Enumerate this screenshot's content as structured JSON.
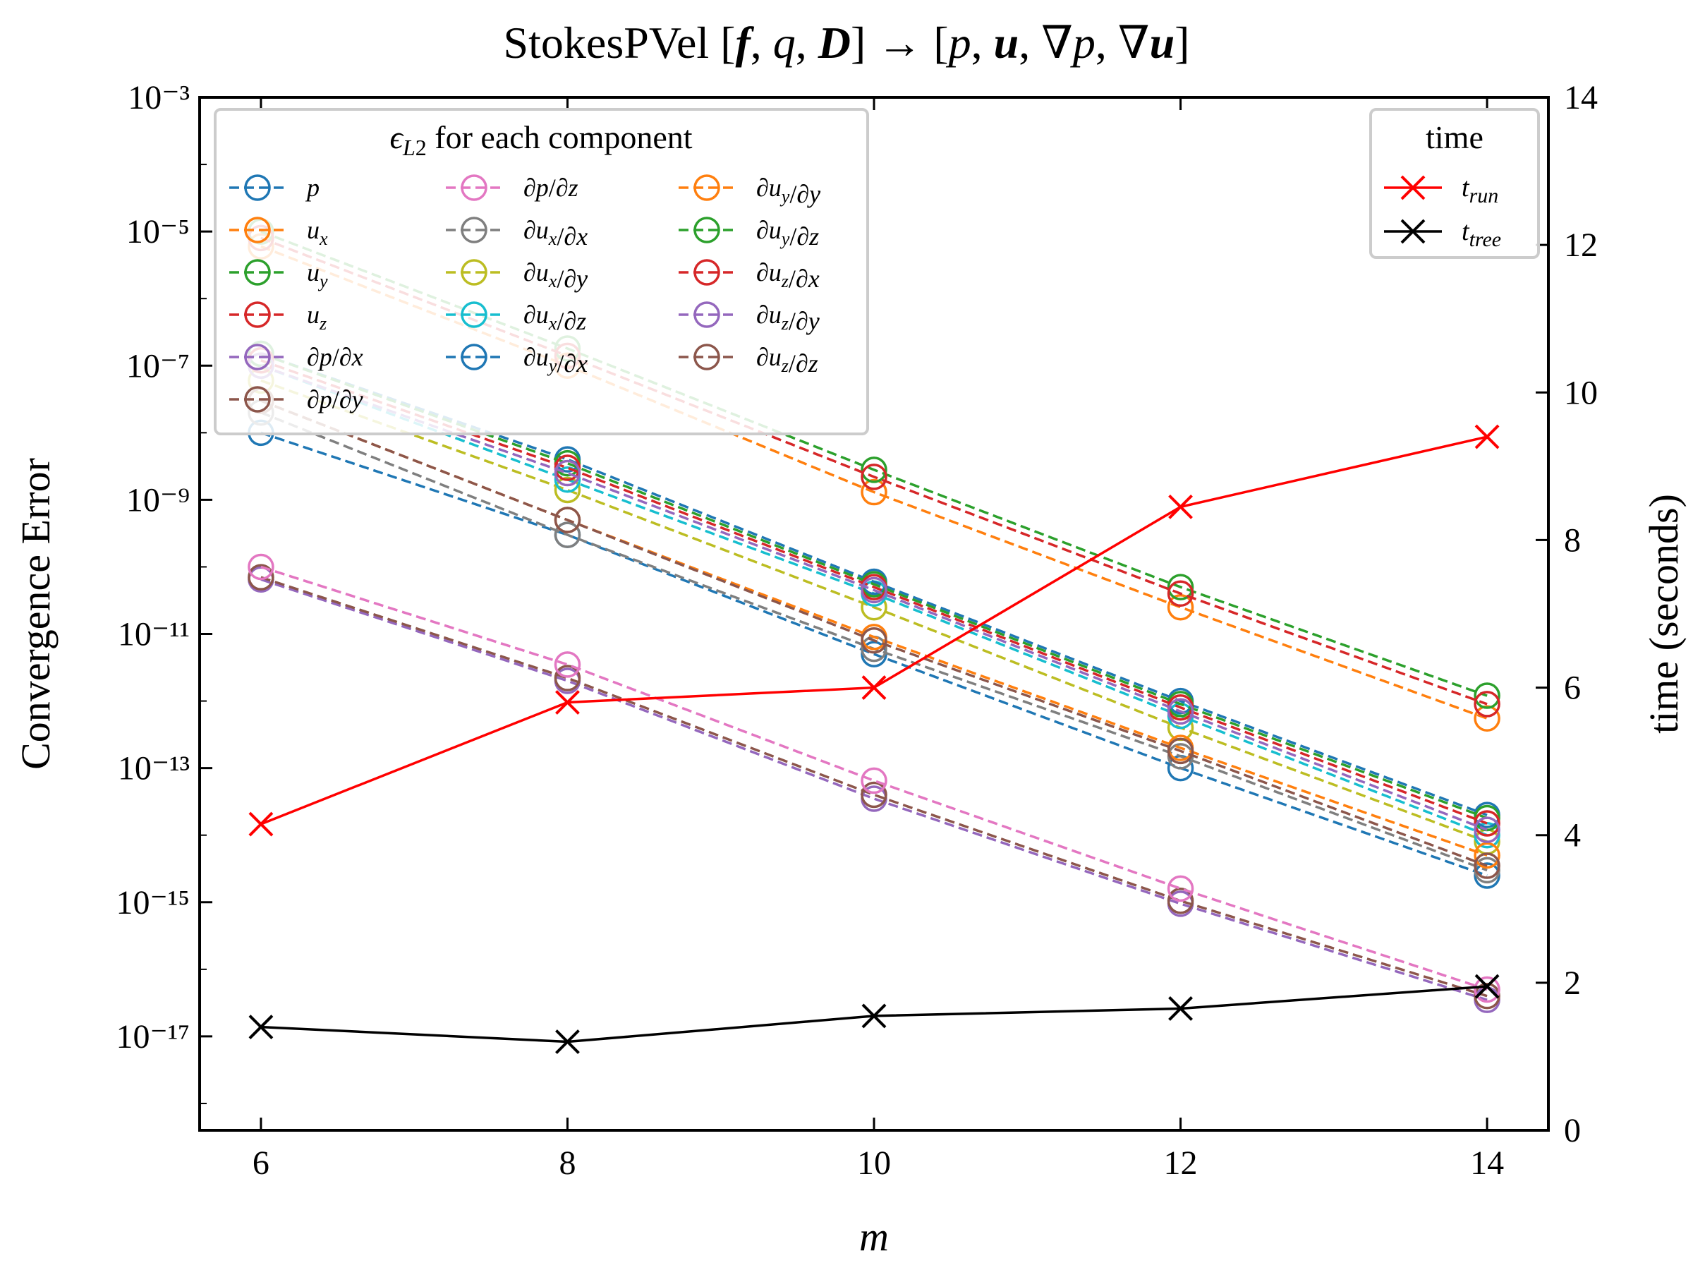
{
  "chart_data": {
    "type": "line",
    "title": "StokesPVel [f, q, D] → [p, u, ∇p, ∇u]",
    "xlabel": "m",
    "ylabel_left": "Convergence Error",
    "ylabel_right": "time (seconds)",
    "x": [
      6,
      8,
      10,
      12,
      14
    ],
    "xticks": [
      "6",
      "8",
      "10",
      "12",
      "14"
    ],
    "xlim": [
      5.6,
      14.4
    ],
    "left_axis": {
      "scale": "log",
      "ylim_exp": [
        -18.4,
        -3
      ],
      "tick_exps": [
        -3,
        -5,
        -7,
        -9,
        -11,
        -13,
        -15,
        -17
      ]
    },
    "right_axis": {
      "scale": "linear",
      "ylim": [
        0,
        14
      ],
      "ticks": [
        "0",
        "2",
        "4",
        "6",
        "8",
        "10",
        "12",
        "14"
      ]
    },
    "error_legend_title": "ε_L2 for each component",
    "time_legend_title": "time",
    "error_series": [
      {
        "name": "p",
        "color": "#1f77b4",
        "values": [
          1e-08,
          3e-10,
          5e-12,
          1e-13,
          2.5e-15
        ]
      },
      {
        "name": "u_x",
        "color": "#ff7f0e",
        "values": [
          6e-06,
          1e-07,
          1.3e-09,
          2.5e-11,
          5.5e-13
        ]
      },
      {
        "name": "u_y",
        "color": "#2ca02c",
        "values": [
          1e-05,
          1.8e-07,
          2.8e-09,
          5e-11,
          1.2e-12
        ]
      },
      {
        "name": "u_z",
        "color": "#d62728",
        "values": [
          8e-06,
          1.4e-07,
          2.2e-09,
          4e-11,
          9e-13
        ]
      },
      {
        "name": "∂p/∂x",
        "color": "#9467bd",
        "values": [
          6.5e-11,
          2e-12,
          3.5e-14,
          9.5e-16,
          3.5e-17
        ]
      },
      {
        "name": "∂p/∂y",
        "color": "#8c564b",
        "values": [
          7e-11,
          2.2e-12,
          4e-14,
          1.05e-15,
          4e-17
        ]
      },
      {
        "name": "∂p/∂z",
        "color": "#e377c2",
        "values": [
          1e-10,
          3.5e-12,
          6.5e-14,
          1.6e-15,
          5e-17
        ]
      },
      {
        "name": "∂u_x/∂x",
        "color": "#7f7f7f",
        "values": [
          2e-08,
          3e-10,
          6e-12,
          1.5e-13,
          3e-15
        ]
      },
      {
        "name": "∂u_x/∂y",
        "color": "#bcbd22",
        "values": [
          6e-08,
          1.4e-09,
          2.5e-11,
          4e-13,
          8e-15
        ]
      },
      {
        "name": "∂u_x/∂z",
        "color": "#17becf",
        "values": [
          1e-07,
          2e-09,
          4e-11,
          6e-13,
          1e-14
        ]
      },
      {
        "name": "∂u_y/∂x",
        "color": "#1f77b4",
        "values": [
          1.5e-07,
          4e-09,
          6e-11,
          1e-12,
          2e-14
        ]
      },
      {
        "name": "∂u_y/∂y",
        "color": "#ff7f0e",
        "values": [
          3e-08,
          5e-10,
          9e-12,
          2e-13,
          5e-15
        ]
      },
      {
        "name": "∂u_y/∂z",
        "color": "#2ca02c",
        "values": [
          1.5e-07,
          3.5e-09,
          5.5e-11,
          9e-13,
          1.8e-14
        ]
      },
      {
        "name": "∂u_z/∂x",
        "color": "#d62728",
        "values": [
          1.2e-07,
          3e-09,
          5e-11,
          8e-13,
          1.5e-14
        ]
      },
      {
        "name": "∂u_z/∂y",
        "color": "#9467bd",
        "values": [
          1e-07,
          2.5e-09,
          4.5e-11,
          7e-13,
          1.2e-14
        ]
      },
      {
        "name": "∂u_z/∂z",
        "color": "#8c564b",
        "values": [
          3e-08,
          5e-10,
          8e-12,
          1.8e-13,
          3.5e-15
        ]
      }
    ],
    "time_series": [
      {
        "name": "t_run",
        "color": "#ff0000",
        "values": [
          4.15,
          5.8,
          6.0,
          8.45,
          9.4
        ]
      },
      {
        "name": "t_tree",
        "color": "#000000",
        "values": [
          1.4,
          1.2,
          1.55,
          1.65,
          1.95
        ]
      }
    ]
  }
}
